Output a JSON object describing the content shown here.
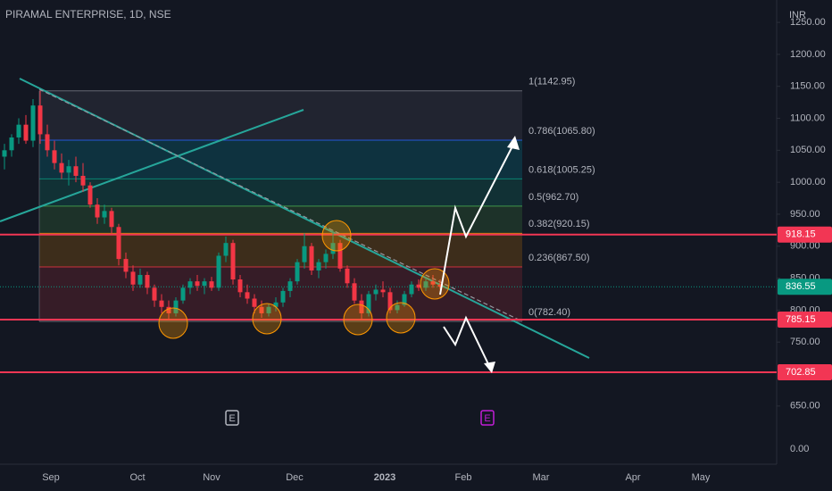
{
  "chart_data": {
    "type": "candlestick",
    "title": "PIRAMAL ENTERPRISE, 1D, NSE",
    "currency": "INR",
    "ylim": [
      559,
      1285
    ],
    "yticks": [
      {
        "value": 1250,
        "label": "1250.00"
      },
      {
        "value": 1200,
        "label": "1200.00"
      },
      {
        "value": 1150,
        "label": "1150.00"
      },
      {
        "value": 1100,
        "label": "1100.00"
      },
      {
        "value": 1050,
        "label": "1050.00"
      },
      {
        "value": 1000,
        "label": "1000.00"
      },
      {
        "value": 950,
        "label": "950.00"
      },
      {
        "value": 900,
        "label": "900.00"
      },
      {
        "value": 850,
        "label": "850.00"
      },
      {
        "value": 800,
        "label": "800.00"
      },
      {
        "value": 750,
        "label": "750.00"
      },
      {
        "value": 650,
        "label": "650.00"
      }
    ],
    "axis_bottom_label": "0.00",
    "x_labels": [
      "Sep",
      "Oct",
      "Nov",
      "Dec",
      "2023",
      "Feb",
      "Mar",
      "Apr",
      "May"
    ],
    "up_color": "#089981",
    "down_color": "#f23645",
    "candles": [
      [
        1040,
        1060,
        1020,
        1050
      ],
      [
        1050,
        1075,
        1040,
        1070
      ],
      [
        1070,
        1100,
        1060,
        1090
      ],
      [
        1090,
        1105,
        1060,
        1065
      ],
      [
        1065,
        1130,
        1055,
        1120
      ],
      [
        1120,
        1143,
        1060,
        1075
      ],
      [
        1075,
        1090,
        1040,
        1050
      ],
      [
        1050,
        1065,
        1020,
        1030
      ],
      [
        1030,
        1045,
        1005,
        1015
      ],
      [
        1015,
        1035,
        995,
        1025
      ],
      [
        1025,
        1040,
        1000,
        1010
      ],
      [
        1010,
        1030,
        985,
        995
      ],
      [
        995,
        1000,
        960,
        965
      ],
      [
        965,
        975,
        935,
        945
      ],
      [
        945,
        965,
        935,
        955
      ],
      [
        955,
        960,
        920,
        930
      ],
      [
        930,
        935,
        870,
        880
      ],
      [
        880,
        890,
        850,
        860
      ],
      [
        860,
        870,
        830,
        840
      ],
      [
        840,
        865,
        835,
        855
      ],
      [
        855,
        860,
        825,
        835
      ],
      [
        835,
        840,
        805,
        815
      ],
      [
        815,
        825,
        795,
        805
      ],
      [
        805,
        815,
        785,
        795
      ],
      [
        795,
        820,
        790,
        815
      ],
      [
        815,
        840,
        810,
        835
      ],
      [
        835,
        850,
        825,
        845
      ],
      [
        845,
        855,
        830,
        838
      ],
      [
        838,
        850,
        825,
        845
      ],
      [
        845,
        852,
        830,
        835
      ],
      [
        835,
        890,
        830,
        885
      ],
      [
        885,
        915,
        875,
        905
      ],
      [
        905,
        910,
        840,
        848
      ],
      [
        848,
        855,
        820,
        828
      ],
      [
        828,
        840,
        810,
        818
      ],
      [
        818,
        825,
        795,
        805
      ],
      [
        805,
        815,
        788,
        795
      ],
      [
        795,
        810,
        790,
        805
      ],
      [
        805,
        820,
        798,
        812
      ],
      [
        812,
        835,
        805,
        830
      ],
      [
        830,
        850,
        820,
        845
      ],
      [
        845,
        880,
        840,
        875
      ],
      [
        875,
        920,
        865,
        900
      ],
      [
        900,
        905,
        855,
        862
      ],
      [
        862,
        880,
        850,
        875
      ],
      [
        875,
        895,
        865,
        888
      ],
      [
        888,
        925,
        880,
        905
      ],
      [
        905,
        910,
        860,
        865
      ],
      [
        865,
        870,
        835,
        842
      ],
      [
        842,
        850,
        810,
        815
      ],
      [
        815,
        825,
        785,
        795
      ],
      [
        795,
        830,
        790,
        825
      ],
      [
        825,
        840,
        815,
        832
      ],
      [
        832,
        845,
        820,
        828
      ],
      [
        828,
        835,
        795,
        800
      ],
      [
        800,
        815,
        795,
        808
      ],
      [
        808,
        830,
        805,
        825
      ],
      [
        825,
        845,
        820,
        840
      ],
      [
        840,
        848,
        830,
        835
      ],
      [
        835,
        850,
        830,
        845
      ],
      [
        845,
        855,
        835,
        840
      ],
      [
        840,
        848,
        832,
        836.55
      ]
    ],
    "fib_levels": [
      {
        "value": 1142.95,
        "label": "1(1142.95)",
        "color": "#787b86"
      },
      {
        "value": 1065.8,
        "label": "0.786(1065.80)",
        "color": "#2962ff"
      },
      {
        "value": 1005.25,
        "label": "0.618(1005.25)",
        "color": "#089981"
      },
      {
        "value": 962.7,
        "label": "0.5(962.70)",
        "color": "#4caf50"
      },
      {
        "value": 920.15,
        "label": "0.382(920.15)",
        "color": "#ff9800"
      },
      {
        "value": 867.5,
        "label": "0.236(867.50)",
        "color": "#f23645"
      },
      {
        "value": 782.4,
        "label": "0(782.40)",
        "color": "#787b86"
      }
    ],
    "fib_band_colors": [
      "rgba(120,123,134,0.14)",
      "rgba(0,150,170,0.22)",
      "rgba(8,153,129,0.2)",
      "rgba(76,175,80,0.18)",
      "rgba(255,152,0,0.18)",
      "rgba(242,54,69,0.16)"
    ],
    "price_lines": [
      918.15,
      785.15,
      702.85
    ],
    "price_line_color": "#f23654",
    "last_price": 836.55,
    "events": [
      "E",
      "E"
    ]
  }
}
